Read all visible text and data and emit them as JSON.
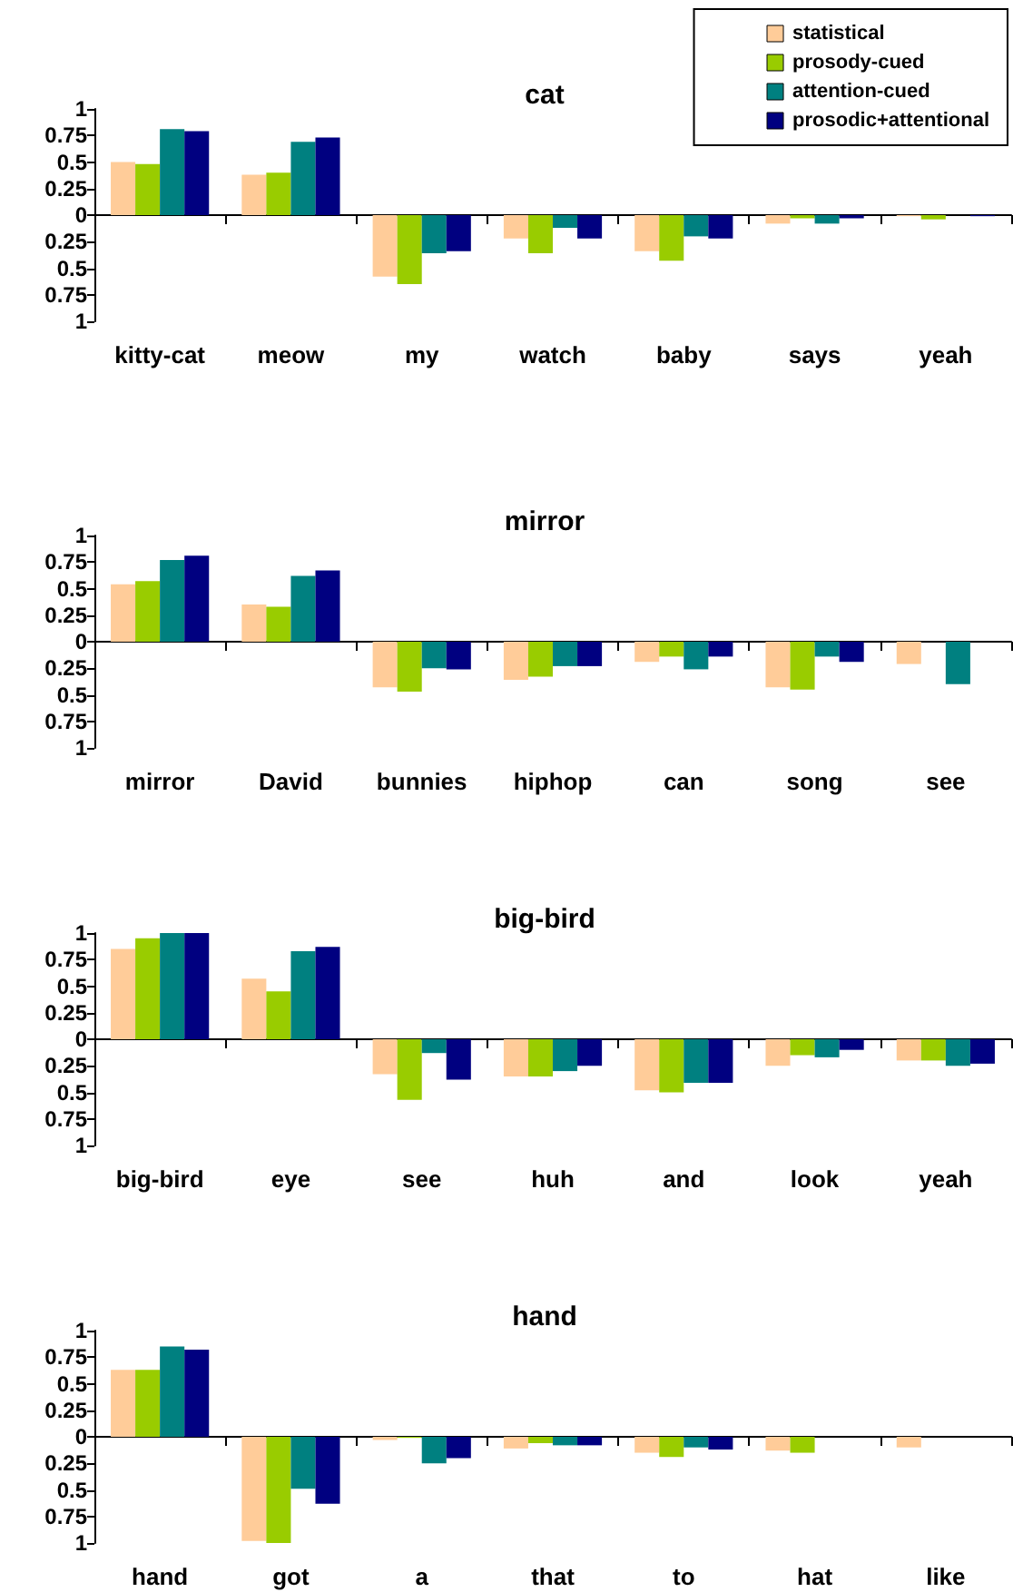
{
  "chart_data": [
    {
      "type": "bar",
      "title": "cat",
      "categories": [
        "kitty-cat",
        "meow",
        "my",
        "watch",
        "baby",
        "says",
        "yeah"
      ],
      "ylim": [
        -1,
        1
      ],
      "yticks": [
        {
          "value": -1,
          "label": "1"
        },
        {
          "value": -0.75,
          "label": "0.75"
        },
        {
          "value": -0.5,
          "label": "0.5"
        },
        {
          "value": -0.25,
          "label": "0.25"
        },
        0,
        0.25,
        0.5,
        0.75,
        1
      ],
      "legend": "top right",
      "series": [
        {
          "name": "statistical",
          "color": "#ffcc99",
          "values": [
            0.5,
            0.38,
            -0.58,
            -0.22,
            -0.34,
            -0.08,
            -0.01
          ]
        },
        {
          "name": "prosody-cued",
          "color": "#99cc00",
          "values": [
            0.48,
            0.4,
            -0.65,
            -0.36,
            -0.43,
            -0.03,
            -0.04
          ]
        },
        {
          "name": "attention-cued",
          "color": "#008080",
          "values": [
            0.81,
            0.69,
            -0.36,
            -0.12,
            -0.2,
            -0.08,
            null
          ]
        },
        {
          "name": "prosodic+attentional",
          "color": "#000080",
          "values": [
            0.79,
            0.73,
            -0.34,
            -0.22,
            -0.22,
            -0.03,
            -0.01
          ]
        }
      ]
    },
    {
      "type": "bar",
      "title": "mirror",
      "categories": [
        "mirror",
        "David",
        "bunnies",
        "hiphop",
        "can",
        "song",
        "see"
      ],
      "ylim": [
        -1,
        1
      ],
      "yticks": [
        {
          "value": -1,
          "label": "1"
        },
        {
          "value": -0.75,
          "label": "0.75"
        },
        {
          "value": -0.5,
          "label": "0.5"
        },
        {
          "value": -0.25,
          "label": "0.25"
        },
        0,
        0.25,
        0.5,
        0.75,
        1
      ],
      "legend": false,
      "series": [
        {
          "color": "#ffcc99",
          "values": [
            0.54,
            0.35,
            -0.43,
            -0.36,
            -0.19,
            -0.43,
            -0.21
          ]
        },
        {
          "color": "#99cc00",
          "values": [
            0.57,
            0.33,
            -0.47,
            -0.33,
            -0.14,
            -0.45,
            null
          ]
        },
        {
          "color": "#008080",
          "values": [
            0.77,
            0.62,
            -0.25,
            -0.23,
            -0.26,
            -0.14,
            -0.4
          ]
        },
        {
          "color": "#000080",
          "values": [
            0.81,
            0.67,
            -0.26,
            -0.23,
            -0.14,
            -0.19,
            null
          ]
        }
      ]
    },
    {
      "type": "bar",
      "title": "big-bird",
      "categories": [
        "big-bird",
        "eye",
        "see",
        "huh",
        "and",
        "look",
        "yeah"
      ],
      "ylim": [
        -1,
        1
      ],
      "yticks": [
        {
          "value": -1,
          "label": "1"
        },
        {
          "value": -0.75,
          "label": "0.75"
        },
        {
          "value": -0.5,
          "label": "0.5"
        },
        {
          "value": -0.25,
          "label": "0.25"
        },
        0,
        0.25,
        0.5,
        0.75,
        1
      ],
      "legend": false,
      "series": [
        {
          "color": "#ffcc99",
          "values": [
            0.85,
            0.57,
            -0.33,
            -0.35,
            -0.48,
            -0.25,
            -0.2
          ]
        },
        {
          "color": "#99cc00",
          "values": [
            0.95,
            0.45,
            -0.57,
            -0.35,
            -0.5,
            -0.15,
            -0.2
          ]
        },
        {
          "color": "#008080",
          "values": [
            1,
            0.83,
            -0.13,
            -0.3,
            -0.41,
            -0.17,
            -0.25
          ]
        },
        {
          "color": "#000080",
          "values": [
            1,
            0.87,
            -0.38,
            -0.25,
            -0.41,
            -0.1,
            -0.23
          ]
        }
      ]
    },
    {
      "type": "bar",
      "title": "hand",
      "categories": [
        "hand",
        "got",
        "a",
        "that",
        "to",
        "hat",
        "like"
      ],
      "ylim": [
        -1,
        1
      ],
      "yticks": [
        {
          "value": -1,
          "label": "1"
        },
        {
          "value": -0.75,
          "label": "0.75"
        },
        {
          "value": -0.5,
          "label": "0.5"
        },
        {
          "value": -0.25,
          "label": "0.25"
        },
        0,
        0.25,
        0.5,
        0.75,
        1
      ],
      "legend": false,
      "series": [
        {
          "color": "#ffcc99",
          "values": [
            0.63,
            -0.98,
            -0.03,
            -0.11,
            -0.15,
            -0.13,
            -0.1
          ]
        },
        {
          "color": "#99cc00",
          "values": [
            0.63,
            -1,
            -0.01,
            -0.06,
            -0.19,
            -0.15,
            null
          ]
        },
        {
          "color": "#008080",
          "values": [
            0.85,
            -0.49,
            -0.25,
            -0.08,
            -0.1,
            null,
            null
          ]
        },
        {
          "color": "#000080",
          "values": [
            0.82,
            -0.63,
            -0.2,
            -0.08,
            -0.12,
            null,
            null
          ]
        }
      ]
    }
  ]
}
